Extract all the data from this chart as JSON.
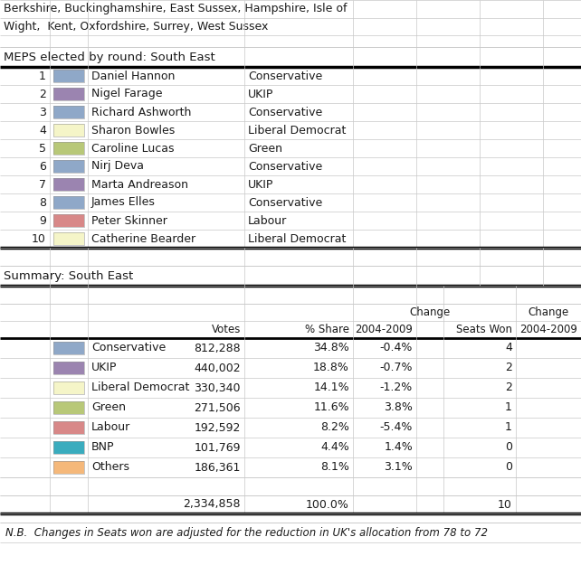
{
  "title_line1": "Berkshire, Buckinghamshire, East Sussex, Hampshire, Isle of",
  "title_line2": "Wight,  Kent, Oxfordshire, Surrey, West Sussex",
  "section1_label": "MEPS elected by round: South East",
  "section2_label": "Summary: South East",
  "meps": [
    {
      "num": 1,
      "name": "Daniel Hannon",
      "party": "Conservative",
      "color": "#8fa8c8"
    },
    {
      "num": 2,
      "name": "Nigel Farage",
      "party": "UKIP",
      "color": "#9b84b0"
    },
    {
      "num": 3,
      "name": "Richard Ashworth",
      "party": "Conservative",
      "color": "#8fa8c8"
    },
    {
      "num": 4,
      "name": "Sharon Bowles",
      "party": "Liberal Democrat",
      "color": "#f5f5c8"
    },
    {
      "num": 5,
      "name": "Caroline Lucas",
      "party": "Green",
      "color": "#b8c878"
    },
    {
      "num": 6,
      "name": "Nirj Deva",
      "party": "Conservative",
      "color": "#8fa8c8"
    },
    {
      "num": 7,
      "name": "Marta Andreason",
      "party": "UKIP",
      "color": "#9b84b0"
    },
    {
      "num": 8,
      "name": "James Elles",
      "party": "Conservative",
      "color": "#8fa8c8"
    },
    {
      "num": 9,
      "name": "Peter Skinner",
      "party": "Labour",
      "color": "#d88888"
    },
    {
      "num": 10,
      "name": "Catherine Bearder",
      "party": "Liberal Democrat",
      "color": "#f5f5c8"
    }
  ],
  "summary_parties": [
    {
      "party": "Conservative",
      "color": "#8fa8c8",
      "votes": "812,288",
      "share": "34.8%",
      "change_v": "-0.4%",
      "seats": "4"
    },
    {
      "party": "UKIP",
      "color": "#9b84b0",
      "votes": "440,002",
      "share": "18.8%",
      "change_v": "-0.7%",
      "seats": "2"
    },
    {
      "party": "Liberal Democrat",
      "color": "#f5f5c8",
      "votes": "330,340",
      "share": "14.1%",
      "change_v": "-1.2%",
      "seats": "2"
    },
    {
      "party": "Green",
      "color": "#b8c878",
      "votes": "271,506",
      "share": "11.6%",
      "change_v": "3.8%",
      "seats": "1"
    },
    {
      "party": "Labour",
      "color": "#d88888",
      "votes": "192,592",
      "share": "8.2%",
      "change_v": "-5.4%",
      "seats": "1"
    },
    {
      "party": "BNP",
      "color": "#3aacbe",
      "votes": "101,769",
      "share": "4.4%",
      "change_v": "1.4%",
      "seats": "0"
    },
    {
      "party": "Others",
      "color": "#f5b87a",
      "votes": "186,361",
      "share": "8.1%",
      "change_v": "3.1%",
      "seats": "0"
    }
  ],
  "total_votes": "2,334,858",
  "total_share": "100.0%",
  "total_seats": "10",
  "note": "N.B.  Changes in Seats won are adjusted for the reduction in UK's allocation from 78 to 72",
  "fig_w": 6.42,
  "fig_h": 6.46,
  "dpi": 100
}
